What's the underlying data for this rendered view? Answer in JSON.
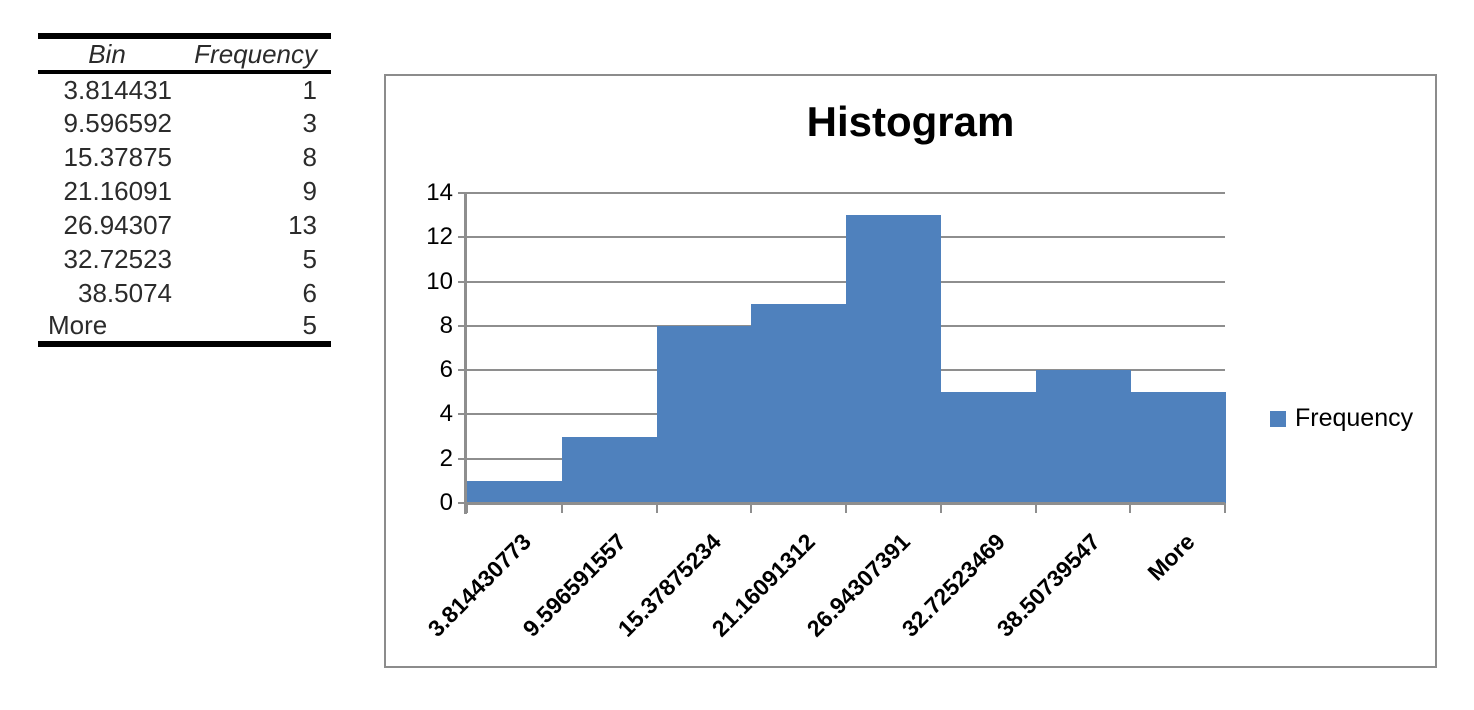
{
  "table": {
    "header": {
      "bin": "Bin",
      "frequency": "Frequency"
    },
    "rows": [
      {
        "bin": "3.814431",
        "frequency": "1"
      },
      {
        "bin": "9.596592",
        "frequency": "3"
      },
      {
        "bin": "15.37875",
        "frequency": "8"
      },
      {
        "bin": "21.16091",
        "frequency": "9"
      },
      {
        "bin": "26.94307",
        "frequency": "13"
      },
      {
        "bin": "32.72523",
        "frequency": "5"
      },
      {
        "bin": "38.5074",
        "frequency": "6"
      },
      {
        "bin": "More",
        "frequency": "5"
      }
    ]
  },
  "chart": {
    "title": "Histogram",
    "legend_label": "Frequency",
    "colors": {
      "bar": "#4F81BD",
      "axis": "#8E8E8E",
      "gridline": "#8E8E8E",
      "frame_border": "#8C8C8C",
      "text": "#000000"
    }
  },
  "chart_data": {
    "type": "bar",
    "title": "Histogram",
    "categories": [
      "3.814430773",
      "9.596591557",
      "15.37875234",
      "21.16091312",
      "26.94307391",
      "32.72523469",
      "38.50739547",
      "More"
    ],
    "series": [
      {
        "name": "Frequency",
        "values": [
          1,
          3,
          8,
          9,
          13,
          5,
          6,
          5
        ]
      }
    ],
    "xlabel": "",
    "ylabel": "",
    "ylim": [
      0,
      14
    ],
    "ytick_step": 2,
    "grid": true,
    "legend_position": "right",
    "bar_gap": 0,
    "x_tick_label_rotation": 45
  }
}
